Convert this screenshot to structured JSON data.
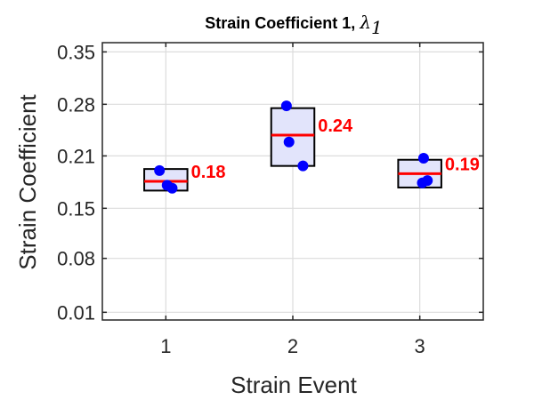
{
  "chart_data": {
    "type": "box",
    "title": {
      "text": "Strain Coefficient 1, ",
      "symbol": "λ",
      "subscript": "1"
    },
    "xlabel": "Strain Event",
    "ylabel": "Strain Coefficient",
    "xlim": [
      0.5,
      3.5
    ],
    "ylim": [
      0.0,
      0.36
    ],
    "x_ticks": [
      1,
      2,
      3
    ],
    "y_ticks": [
      "0.01",
      "0.08",
      "0.15",
      "0.21",
      "0.28",
      "0.35"
    ],
    "y_tick_values": [
      0.01,
      0.08,
      0.145,
      0.213,
      0.28,
      0.348
    ],
    "grid": true,
    "groups": [
      {
        "x": 1,
        "box_low": 0.168,
        "box_high": 0.196,
        "median": 0.18,
        "label": "0.18",
        "points": [
          {
            "x": 0.95,
            "y": 0.194
          },
          {
            "x": 1.01,
            "y": 0.175
          },
          {
            "x": 1.05,
            "y": 0.171
          }
        ]
      },
      {
        "x": 2,
        "box_low": 0.2,
        "box_high": 0.275,
        "median": 0.24,
        "label": "0.24",
        "points": [
          {
            "x": 1.95,
            "y": 0.278
          },
          {
            "x": 1.97,
            "y": 0.231
          },
          {
            "x": 2.08,
            "y": 0.2
          }
        ]
      },
      {
        "x": 3,
        "box_low": 0.172,
        "box_high": 0.208,
        "median": 0.19,
        "label": "0.19",
        "points": [
          {
            "x": 3.03,
            "y": 0.21
          },
          {
            "x": 3.02,
            "y": 0.178
          },
          {
            "x": 3.06,
            "y": 0.181
          }
        ]
      }
    ],
    "colors": {
      "box_fill": "#e2e4fb",
      "box_edge": "#000000",
      "median": "#ff0000",
      "points": "#0000ff",
      "labels": "#ff0000",
      "grid": "#dcdcdc",
      "axis": "#262626"
    }
  }
}
